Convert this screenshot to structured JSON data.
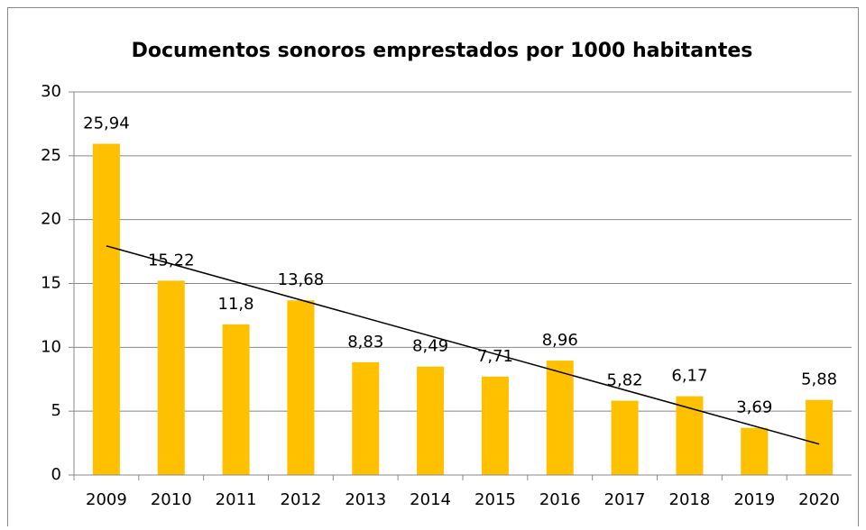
{
  "chart_data": {
    "type": "bar",
    "title": "Documentos sonoros emprestados por 1000 habitantes",
    "categories": [
      "2009",
      "2010",
      "2011",
      "2012",
      "2013",
      "2014",
      "2015",
      "2016",
      "2017",
      "2018",
      "2019",
      "2020"
    ],
    "values": [
      25.94,
      15.22,
      11.8,
      13.68,
      8.83,
      8.49,
      7.71,
      8.96,
      5.82,
      6.17,
      3.69,
      5.88
    ],
    "value_labels": [
      "25,94",
      "15,22",
      "11,8",
      "13,68",
      "8,83",
      "8,49",
      "7,71",
      "8,96",
      "5,82",
      "6,17",
      "3,69",
      "5,88"
    ],
    "color": "#ffc000",
    "ylim": [
      0,
      30
    ],
    "yticks": [
      0,
      5,
      10,
      15,
      20,
      25,
      30
    ],
    "grid": true,
    "trendline": "linear"
  }
}
